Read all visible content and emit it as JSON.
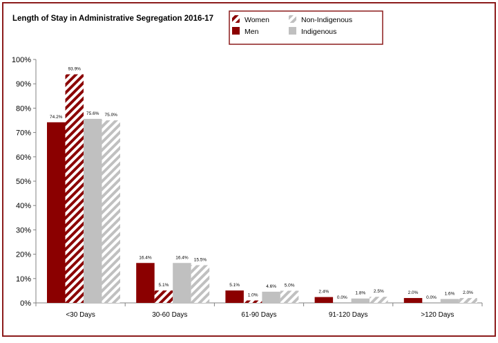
{
  "chart_data": {
    "type": "bar",
    "title": "Length of Stay in Administrative Segregation 2016-17",
    "xlabel": "",
    "ylabel": "",
    "ylim": [
      0,
      100
    ],
    "y_ticks": [
      "0%",
      "10%",
      "20%",
      "30%",
      "40%",
      "50%",
      "60%",
      "70%",
      "80%",
      "90%",
      "100%"
    ],
    "categories": [
      "<30 Days",
      "30-60 Days",
      "61-90 Days",
      "91-120 Days",
      ">120 Days"
    ],
    "series": [
      {
        "name": "Men",
        "values": [
          74.2,
          16.4,
          5.1,
          2.4,
          2.0
        ],
        "labels": [
          "74.2%",
          "16.4%",
          "5.1%",
          "2.4%",
          "2.0%"
        ],
        "color": "#8b0000",
        "pattern": "solid"
      },
      {
        "name": "Women",
        "values": [
          93.9,
          5.1,
          1.0,
          0.0,
          0.0
        ],
        "labels": [
          "93.9%",
          "5.1%",
          "1.0%",
          "0.0%",
          "0.0%"
        ],
        "color": "#8b0000",
        "pattern": "hatch"
      },
      {
        "name": "Indigenous",
        "values": [
          75.6,
          16.4,
          4.6,
          1.8,
          1.6
        ],
        "labels": [
          "75.6%",
          "16.4%",
          "4.6%",
          "1.8%",
          "1.6%"
        ],
        "color": "#c0c0c0",
        "pattern": "solid"
      },
      {
        "name": "Non-Indigenous",
        "values": [
          75.0,
          15.5,
          5.0,
          2.5,
          2.0
        ],
        "labels": [
          "75.0%",
          "15.5%",
          "5.0%",
          "2.5%",
          "2.0%"
        ],
        "color": "#c0c0c0",
        "pattern": "hatch"
      }
    ],
    "legend": {
      "placement": "top-center",
      "order": [
        "Women",
        "Non-Indigenous",
        "Men",
        "Indigenous"
      ]
    },
    "frame_color": "#8b1a1a",
    "grid": false
  }
}
